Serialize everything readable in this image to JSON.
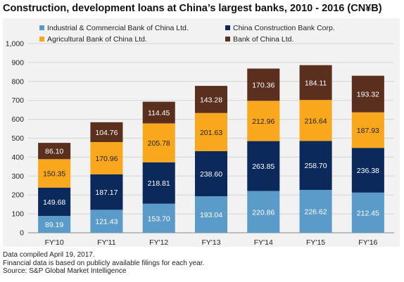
{
  "title": "Construction, development loans at China’s largest banks, 2010 - 2016 (CN¥B)",
  "footer": {
    "line1": "Data compiled April 19, 2017.",
    "line2": "Financial data is based on publicly available filings for each year.",
    "line3": "Source: S&P Global Market Intelligence"
  },
  "chart_data": {
    "type": "bar",
    "stacked": true,
    "title": "Construction, development loans at China’s largest banks, 2010 - 2016 (CN¥B)",
    "xlabel": "",
    "ylabel": "",
    "ylim": [
      0,
      1000
    ],
    "yticks": [
      0,
      100,
      200,
      300,
      400,
      500,
      600,
      700,
      800,
      900,
      1000
    ],
    "ytick_labels": [
      "0",
      "100",
      "200",
      "300",
      "400",
      "500",
      "600",
      "700",
      "800",
      "900",
      "1,000"
    ],
    "grid": true,
    "legend_position": "top",
    "categories": [
      "FY'10",
      "FY'11",
      "FY'12",
      "FY'13",
      "FY'14",
      "FY'15",
      "FY'16"
    ],
    "series": [
      {
        "name": "Industrial & Commercial Bank of China Ltd.",
        "color": "#5b9bc9",
        "label_color": "#ffffff",
        "values": [
          89.19,
          121.43,
          153.7,
          193.04,
          220.86,
          226.62,
          212.45
        ],
        "labels": [
          "89.19",
          "121.43",
          "153.70",
          "193.04",
          "220.86",
          "226.62",
          "212.45"
        ]
      },
      {
        "name": "China Construction Bank Corp.",
        "color": "#0b2a5b",
        "label_color": "#ffffff",
        "values": [
          149.68,
          187.17,
          218.81,
          238.6,
          263.85,
          258.7,
          236.38
        ],
        "labels": [
          "149.68",
          "187.17",
          "218.81",
          "238.60",
          "263.85",
          "258.70",
          "236.38"
        ]
      },
      {
        "name": "Agricultural Bank of China Ltd.",
        "color": "#f9a81e",
        "label_color": "#222222",
        "values": [
          150.35,
          170.96,
          205.78,
          201.63,
          212.96,
          216.64,
          187.93
        ],
        "labels": [
          "150.35",
          "170.96",
          "205.78",
          "201.63",
          "212.96",
          "216.64",
          "187.93"
        ]
      },
      {
        "name": "Bank of China Ltd.",
        "color": "#5a2f1e",
        "label_color": "#ffffff",
        "values": [
          86.1,
          104.76,
          114.45,
          143.28,
          170.36,
          184.11,
          193.32
        ],
        "labels": [
          "86.10",
          "104.76",
          "114.45",
          "143.28",
          "170.36",
          "184.11",
          "193.32"
        ]
      }
    ],
    "gridline_color": "#d4d4d4"
  }
}
